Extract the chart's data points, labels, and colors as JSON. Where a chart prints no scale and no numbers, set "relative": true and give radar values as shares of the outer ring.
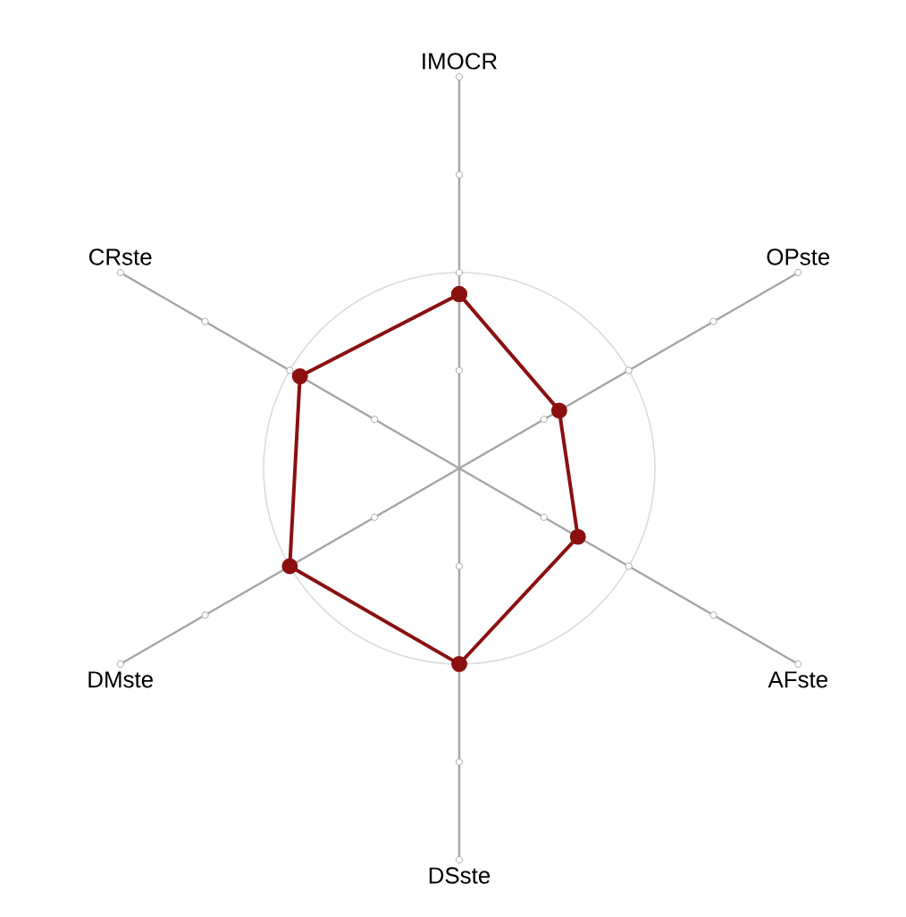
{
  "chart_data": {
    "type": "radar",
    "relative": true,
    "categories": [
      "IMOCR",
      "OPste",
      "AFste",
      "DSste",
      "DMste",
      "CRste"
    ],
    "series": [
      {
        "color": "#8b1010",
        "values": [
          0.89,
          0.59,
          0.7,
          1.0,
          1.0,
          0.94
        ]
      }
    ],
    "marker": "circle"
  }
}
